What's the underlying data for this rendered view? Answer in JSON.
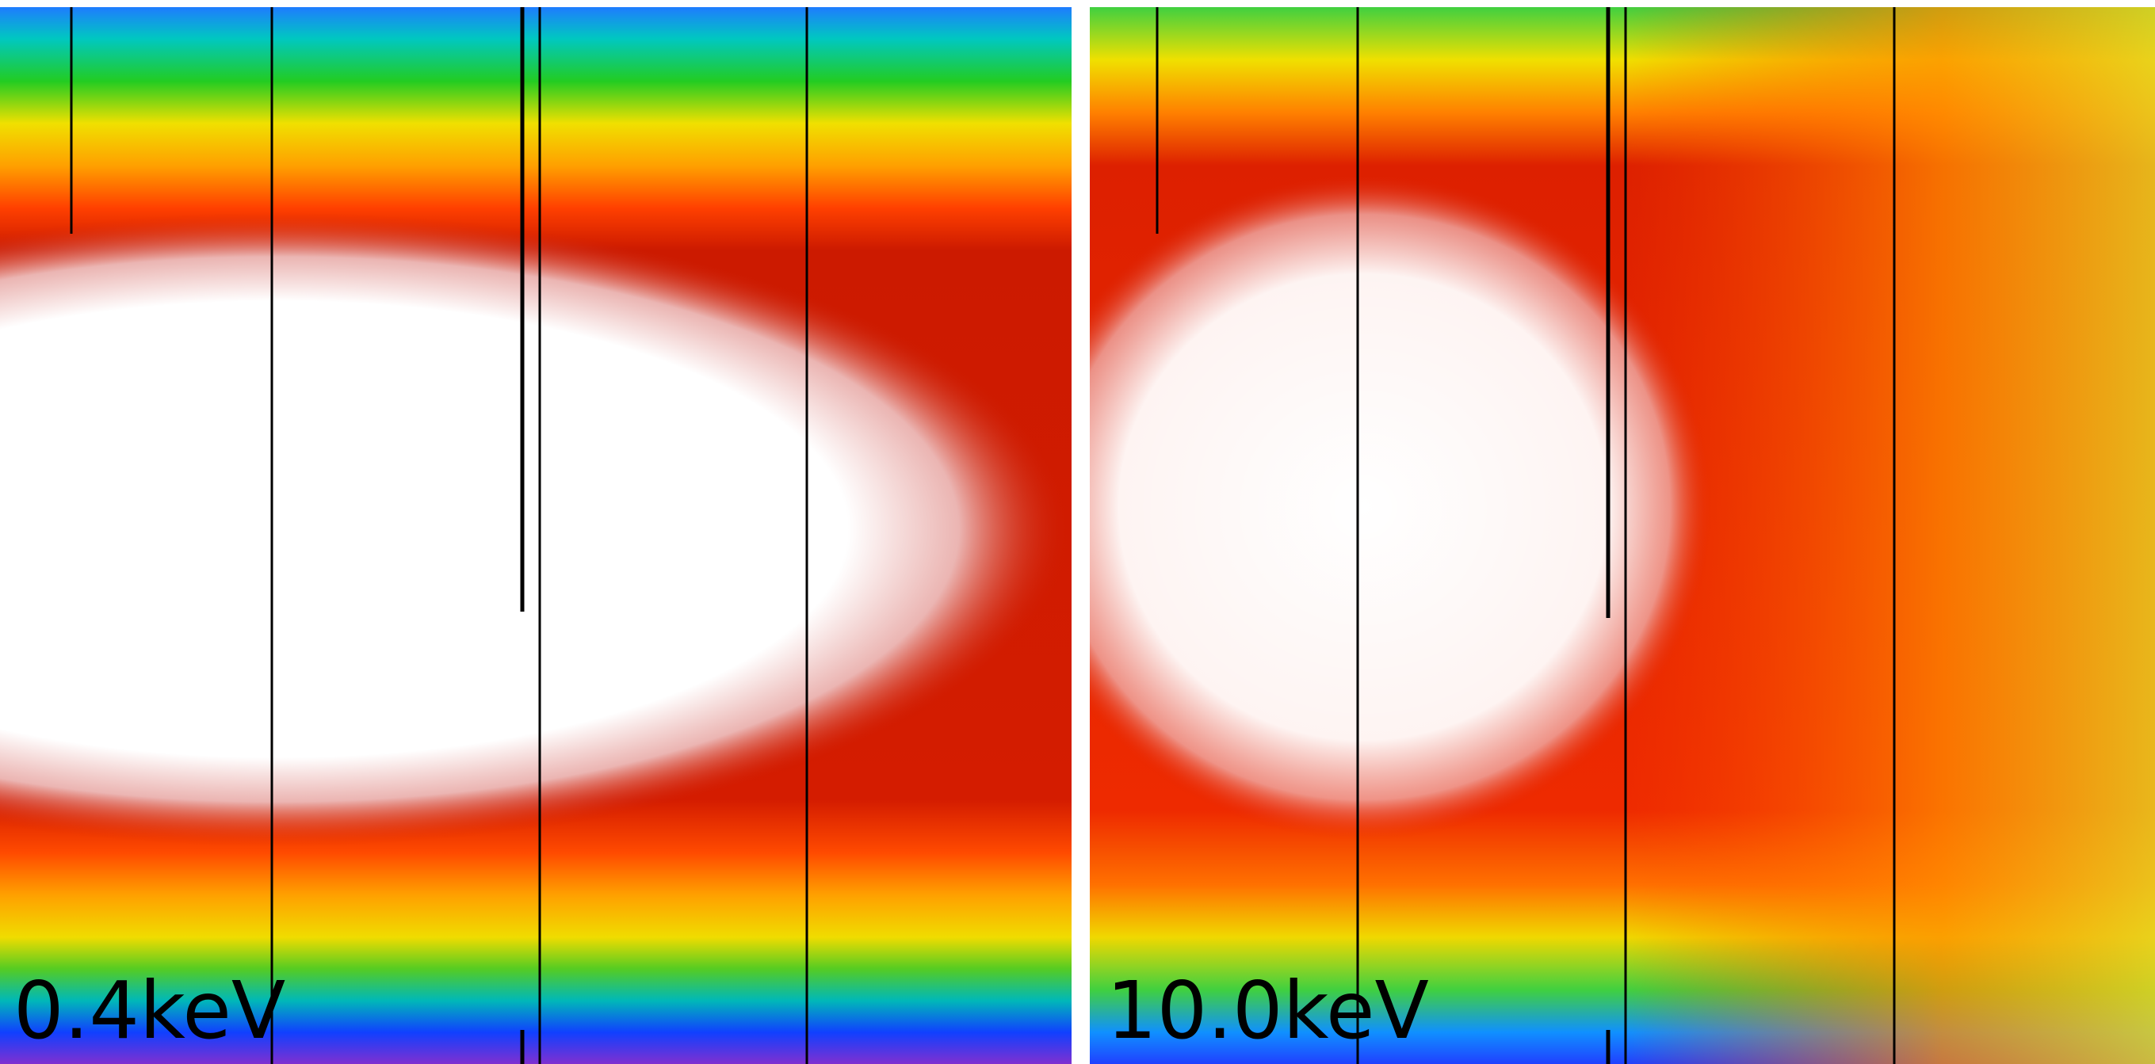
{
  "panels": [
    {
      "label": "0.4keV"
    },
    {
      "label": "10.0keV"
    }
  ]
}
